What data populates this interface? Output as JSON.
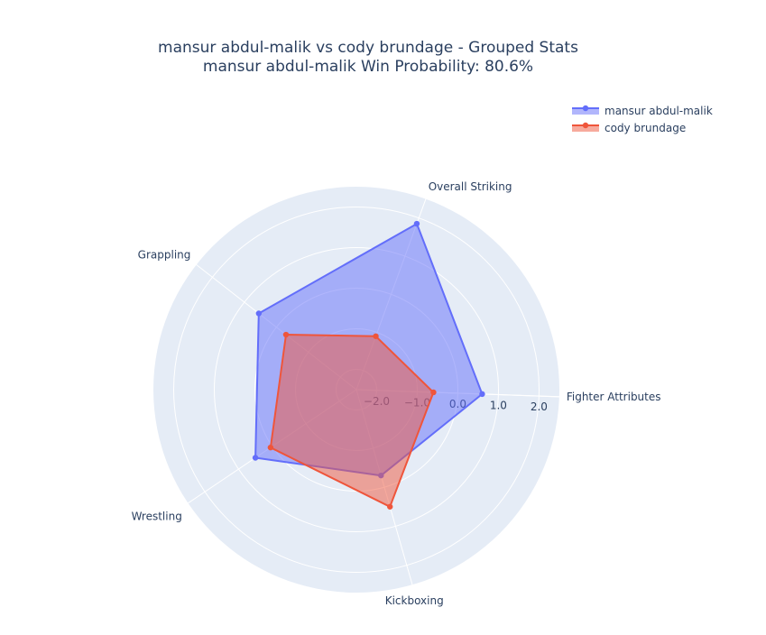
{
  "chart_data": {
    "type": "radar",
    "title": "mansur abdul-malik vs cody brundage - Grouped Stats",
    "subtitle": "mansur abdul-malik Win Probability: 80.6%",
    "categories": [
      "Fighter Attributes",
      "Overall Striking",
      "Grappling",
      "Wrestling",
      "Kickboxing"
    ],
    "radial_range": [
      -2.5,
      2.5
    ],
    "radial_ticks": [
      -2.0,
      -1.0,
      0.0,
      1.0,
      2.0
    ],
    "radial_tick_labels": [
      "−2.0",
      "−1.0",
      "0.0",
      "1.0",
      "2.0"
    ],
    "legend_position": "top-right",
    "series": [
      {
        "name": "mansur abdul-malik",
        "color": "#636efa",
        "values": [
          0.6,
          1.85,
          0.55,
          0.5,
          -0.3
        ]
      },
      {
        "name": "cody brundage",
        "color": "#ef553b",
        "values": [
          -0.6,
          -1.1,
          -0.3,
          0.05,
          0.5
        ]
      }
    ]
  }
}
